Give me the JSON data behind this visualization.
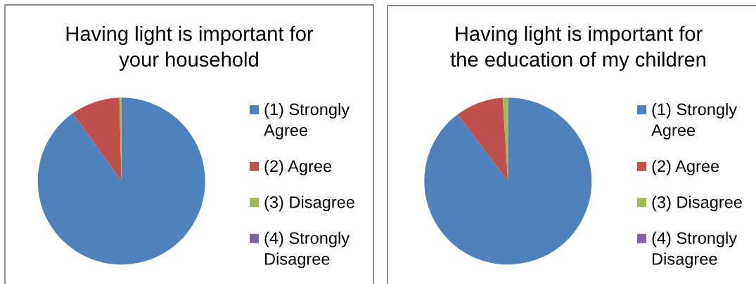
{
  "chart_data": [
    {
      "type": "pie",
      "title": "Having light is important for your household",
      "categories": [
        "(1) Strongly Agree",
        "(2) Agree",
        "(3) Disagree",
        "(4) Strongly Disagree"
      ],
      "values": [
        90.1,
        9.5,
        0.4,
        0
      ],
      "colors": [
        "#4f81bd",
        "#c0504d",
        "#9bbb59",
        "#8064a2"
      ],
      "legend": "right"
    },
    {
      "type": "pie",
      "title": "Having light is important for the education of my children",
      "categories": [
        "(1) Strongly Agree",
        "(2) Agree",
        "(3) Disagree",
        "(4) Strongly Disagree"
      ],
      "values": [
        89.7,
        9.3,
        1.0,
        0
      ],
      "colors": [
        "#4f81bd",
        "#c0504d",
        "#9bbb59",
        "#8064a2"
      ],
      "legend": "right"
    }
  ]
}
